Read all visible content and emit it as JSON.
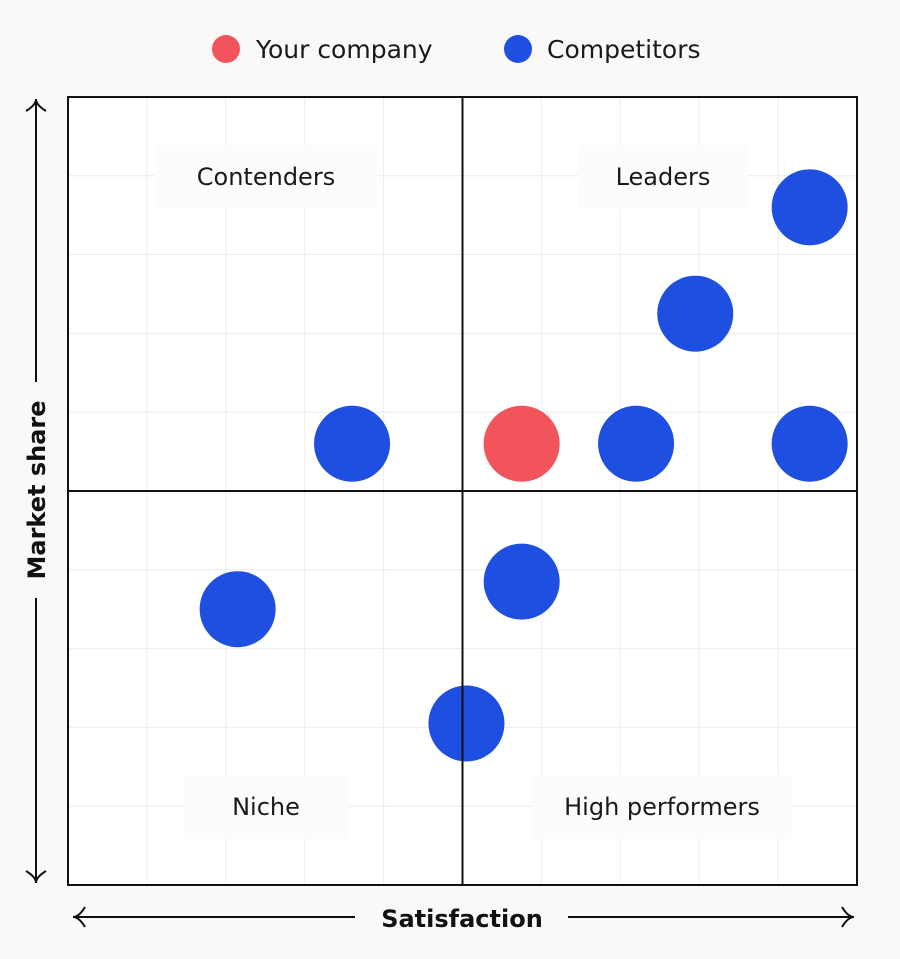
{
  "chart_data": {
    "type": "scatter",
    "title": "",
    "xlabel": "Satisfaction",
    "ylabel": "Market share",
    "xlim": [
      0,
      10
    ],
    "ylim": [
      0,
      10
    ],
    "grid": true,
    "legend_position": "top-center",
    "quadrants": [
      {
        "name": "Contenders",
        "position": "top-left"
      },
      {
        "name": "Leaders",
        "position": "top-right"
      },
      {
        "name": "Niche",
        "position": "bottom-left"
      },
      {
        "name": "High performers",
        "position": "bottom-right"
      }
    ],
    "series": [
      {
        "name": "Your company",
        "color": "#f2545b",
        "points": [
          {
            "x": 5.75,
            "y": 5.6
          }
        ]
      },
      {
        "name": "Competitors",
        "color": "#1f4fe0",
        "points": [
          {
            "x": 9.4,
            "y": 8.6
          },
          {
            "x": 7.95,
            "y": 7.25
          },
          {
            "x": 3.6,
            "y": 5.6
          },
          {
            "x": 7.2,
            "y": 5.6
          },
          {
            "x": 9.4,
            "y": 5.6
          },
          {
            "x": 5.75,
            "y": 3.85
          },
          {
            "x": 2.15,
            "y": 3.5
          },
          {
            "x": 5.05,
            "y": 2.05
          }
        ]
      }
    ]
  }
}
